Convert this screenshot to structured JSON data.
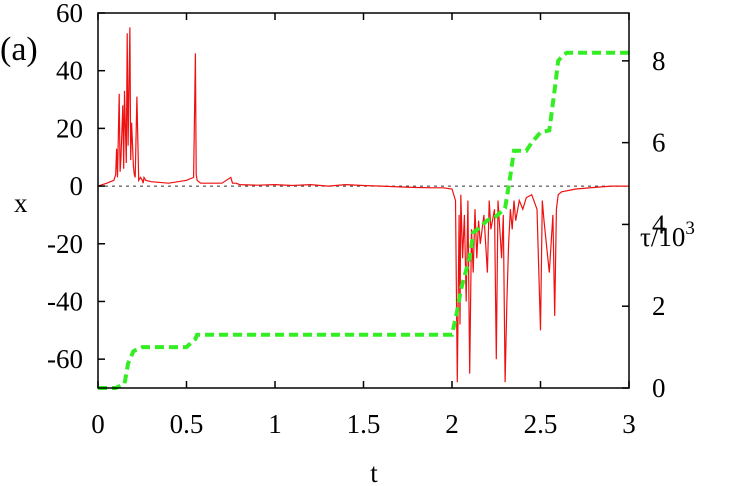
{
  "chart_data": {
    "type": "line",
    "panel_label": "(a)",
    "xlabel": "t",
    "ylabel_left": "x",
    "ylabel_right_base": "τ/10",
    "ylabel_right_exp": "3",
    "xlim": [
      0,
      3
    ],
    "ylim_left": [
      -70,
      60
    ],
    "ylim_right": [
      0,
      9.17
    ],
    "x_ticks": [
      {
        "value": 0,
        "label": "0"
      },
      {
        "value": 0.5,
        "label": "0.5"
      },
      {
        "value": 1,
        "label": "1"
      },
      {
        "value": 1.5,
        "label": "1.5"
      },
      {
        "value": 2,
        "label": "2"
      },
      {
        "value": 2.5,
        "label": "2.5"
      },
      {
        "value": 3,
        "label": "3"
      }
    ],
    "y_ticks_left": [
      {
        "value": 60,
        "label": "60"
      },
      {
        "value": 40,
        "label": "40"
      },
      {
        "value": 20,
        "label": "20"
      },
      {
        "value": 0,
        "label": "0"
      },
      {
        "value": -20,
        "label": "-20"
      },
      {
        "value": -40,
        "label": "-40"
      },
      {
        "value": -60,
        "label": "-60"
      }
    ],
    "y_ticks_right": [
      {
        "value": 0,
        "label": "0"
      },
      {
        "value": 2,
        "label": "2"
      },
      {
        "value": 4,
        "label": "4"
      },
      {
        "value": 6,
        "label": "6"
      },
      {
        "value": 8,
        "label": "8"
      }
    ],
    "grid": false,
    "zero_line": true,
    "series": [
      {
        "axis": "left",
        "style": "solid",
        "color": "#ee1111",
        "x": [
          0,
          0.05,
          0.09,
          0.1,
          0.105,
          0.11,
          0.12,
          0.125,
          0.13,
          0.14,
          0.145,
          0.15,
          0.16,
          0.165,
          0.17,
          0.18,
          0.185,
          0.19,
          0.2,
          0.205,
          0.21,
          0.22,
          0.23,
          0.24,
          0.25,
          0.255,
          0.26,
          0.27,
          0.3,
          0.4,
          0.5,
          0.54,
          0.55,
          0.555,
          0.56,
          0.58,
          0.6,
          0.7,
          0.75,
          0.76,
          0.78,
          0.8,
          0.9,
          1.0,
          1.1,
          1.2,
          1.3,
          1.4,
          1.5,
          1.6,
          1.7,
          1.8,
          1.9,
          1.95,
          2.0,
          2.02,
          2.03,
          2.04,
          2.045,
          2.05,
          2.06,
          2.07,
          2.08,
          2.09,
          2.1,
          2.11,
          2.12,
          2.13,
          2.14,
          2.15,
          2.16,
          2.18,
          2.2,
          2.21,
          2.22,
          2.24,
          2.25,
          2.26,
          2.28,
          2.29,
          2.3,
          2.31,
          2.32,
          2.33,
          2.34,
          2.35,
          2.36,
          2.38,
          2.4,
          2.42,
          2.45,
          2.48,
          2.5,
          2.51,
          2.52,
          2.55,
          2.57,
          2.58,
          2.59,
          2.6,
          2.62,
          2.7,
          2.8,
          2.9,
          3.0
        ],
        "y": [
          0,
          1,
          2,
          4,
          13,
          3,
          32,
          5,
          10,
          28,
          6,
          33,
          8,
          53,
          14,
          55,
          9,
          22,
          7,
          4,
          3,
          31,
          2,
          3,
          2,
          1,
          3,
          2,
          1.5,
          1,
          2,
          3,
          46,
          4,
          2,
          1,
          1,
          1,
          3,
          1,
          1,
          0.5,
          0.3,
          0.5,
          0.2,
          0.5,
          0,
          0.5,
          0.2,
          0,
          -0.3,
          -0.5,
          -0.6,
          -0.6,
          -1,
          -5,
          -68,
          -10,
          -48,
          -3,
          -25,
          -10,
          -40,
          -5,
          -65,
          -15,
          -30,
          -8,
          -25,
          -12,
          -20,
          -10,
          -30,
          -5,
          -15,
          -8,
          -60,
          -5,
          -25,
          -10,
          -68,
          -40,
          -20,
          -8,
          -15,
          -5,
          -12,
          -5,
          -8,
          -4,
          -3,
          -8,
          -50,
          -5,
          -12,
          -30,
          -10,
          -45,
          -8,
          -3,
          -2,
          -1,
          -0.5,
          0,
          0
        ]
      },
      {
        "axis": "right",
        "style": "dashed",
        "color": "#33ee22",
        "x": [
          0,
          0.1,
          0.15,
          0.17,
          0.2,
          0.25,
          0.3,
          0.5,
          0.55,
          0.56,
          1.0,
          1.5,
          1.95,
          2.0,
          2.03,
          2.05,
          2.1,
          2.12,
          2.15,
          2.2,
          2.25,
          2.3,
          2.33,
          2.35,
          2.38,
          2.42,
          2.45,
          2.5,
          2.55,
          2.58,
          2.6,
          2.63,
          2.65,
          2.7,
          2.8,
          2.9,
          3.0
        ],
        "y": [
          0,
          0,
          0.1,
          0.6,
          0.9,
          1.0,
          1.0,
          1.0,
          1.2,
          1.3,
          1.3,
          1.3,
          1.3,
          1.3,
          1.9,
          2.4,
          3.2,
          3.8,
          3.9,
          4.1,
          4.2,
          4.4,
          5.2,
          5.8,
          5.8,
          5.8,
          6.0,
          6.25,
          6.3,
          7.3,
          8.0,
          8.15,
          8.2,
          8.2,
          8.2,
          8.2,
          8.2
        ]
      }
    ]
  }
}
